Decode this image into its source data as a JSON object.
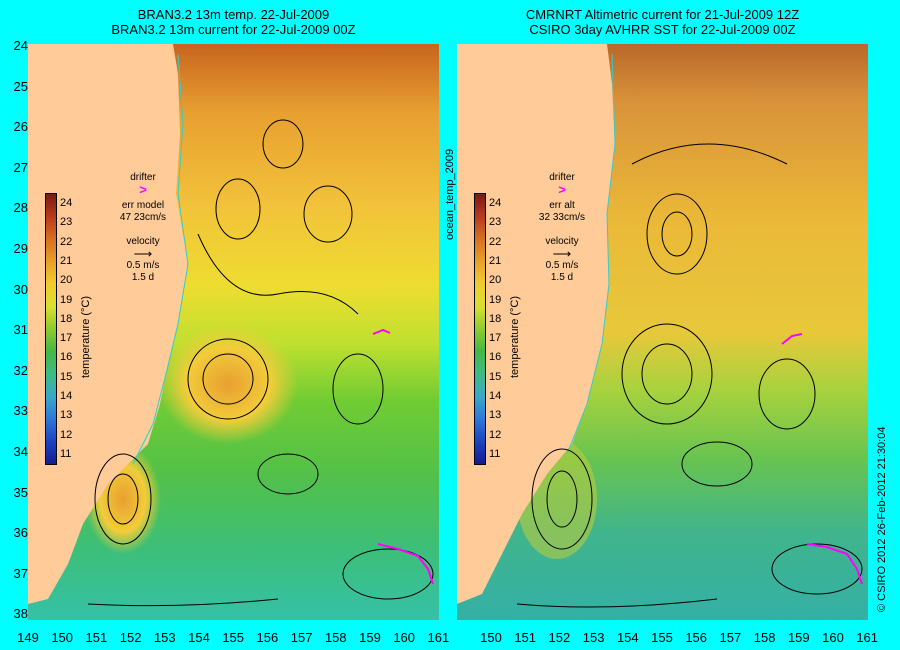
{
  "left_panel": {
    "title_line1": "BRAN3.2 13m temp. 22-Jul-2009",
    "title_line2": "BRAN3.2 13m current for 22-Jul-2009 00Z",
    "drifter_label": "drifter",
    "drifter_symbol": ">",
    "err_label": "err model",
    "err_value": "47 23cm/s",
    "velocity_label": "velocity",
    "velocity_value": "0.5 m/s",
    "velocity_days": "1.5 d"
  },
  "right_panel": {
    "title_line1": "CMRNRT Altimetric current for 21-Jul-2009 12Z",
    "title_line2": "CSIRO 3day AVHRR SST for 22-Jul-2009 00Z",
    "drifter_label": "drifter",
    "drifter_symbol": ">",
    "err_label": "err alt",
    "err_value": "32 33cm/s",
    "velocity_label": "velocity",
    "velocity_value": "0.5 m/s",
    "velocity_days": "1.5 d"
  },
  "colorbar": {
    "label": "temperature (°C)",
    "ticks": [
      "24",
      "23",
      "22",
      "21",
      "20",
      "19",
      "18",
      "17",
      "16",
      "15",
      "14",
      "13",
      "12",
      "11"
    ]
  },
  "vertical_text": "ocean_temp_2009",
  "credit": "© CSIRO 2012  26-Feb-2012 21:30:04",
  "y_axis_labels": [
    "24",
    "25",
    "26",
    "27",
    "28",
    "29",
    "30",
    "31",
    "32",
    "33",
    "34",
    "35",
    "36",
    "37",
    "38"
  ],
  "left_x_labels": [
    "149",
    "150",
    "151",
    "152",
    "153",
    "154",
    "155",
    "156",
    "157",
    "158",
    "159",
    "160",
    "161"
  ],
  "right_x_labels": [
    "150",
    "151",
    "152",
    "153",
    "154",
    "155",
    "156",
    "157",
    "158",
    "159",
    "160",
    "161"
  ],
  "colors": {
    "background": "#00ffff",
    "land": "#ffcc99",
    "drifter": "#ff00ff"
  }
}
